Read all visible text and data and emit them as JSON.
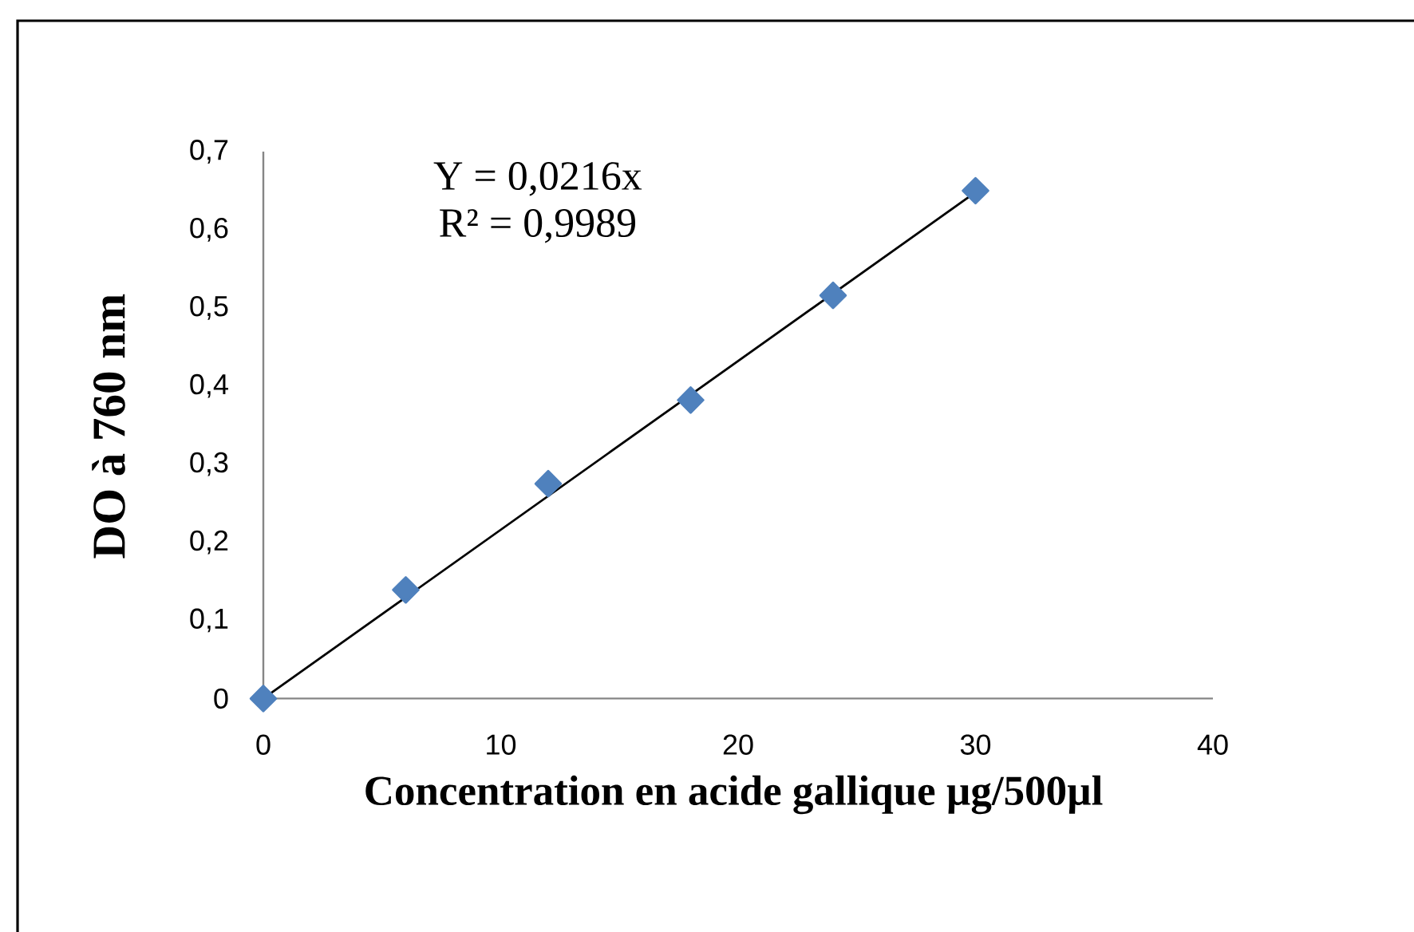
{
  "chart_data": {
    "type": "scatter",
    "xlabel": "Concentration en acide gallique µg/500µl",
    "ylabel": "DO à 760 nm",
    "annotations": [
      "Y = 0,0216x",
      "R² = 0,9989"
    ],
    "xlim": [
      0,
      40
    ],
    "xticks": [
      0,
      10,
      20,
      30,
      40
    ],
    "ylim": [
      0,
      0.7
    ],
    "yticks": [
      0,
      {
        "value": 0.1,
        "label": "0,1"
      },
      {
        "value": 0.2,
        "label": "0,2"
      },
      {
        "value": 0.3,
        "label": "0,3"
      },
      {
        "value": 0.4,
        "label": "0,4"
      },
      {
        "value": 0.5,
        "label": "0,5"
      },
      {
        "value": 0.6,
        "label": "0,6"
      },
      {
        "value": 0.7,
        "label": "0,7"
      }
    ],
    "series": [
      {
        "color": "#4f81bd",
        "marker": "diamond",
        "x": [
          0,
          6,
          12,
          18,
          24,
          30
        ],
        "values": [
          0,
          0.139,
          0.275,
          0.382,
          0.516,
          0.65
        ]
      },
      {
        "type": "line",
        "color": "#000000",
        "x": [
          0,
          30
        ],
        "values": [
          0,
          0.648
        ]
      }
    ]
  }
}
